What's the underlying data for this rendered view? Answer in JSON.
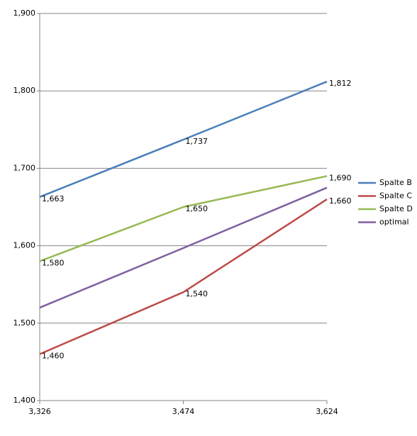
{
  "chart_data": {
    "type": "line",
    "categories": [
      "3,326",
      "3,474",
      "3,624"
    ],
    "ylim": [
      1400,
      1900
    ],
    "yticks": [
      {
        "value": 1400,
        "label": "1,400"
      },
      {
        "value": 1500,
        "label": "1,500"
      },
      {
        "value": 1600,
        "label": "1,600"
      },
      {
        "value": 1700,
        "label": "1,700"
      },
      {
        "value": 1800,
        "label": "1,800"
      },
      {
        "value": 1900,
        "label": "1,900"
      }
    ],
    "grid": true,
    "legend": "right",
    "series": [
      {
        "name": "Spalte B",
        "color": "#4a7ebb",
        "values": [
          1663,
          1737,
          1812
        ],
        "value_labels": [
          "1,663",
          "1,737",
          "1,812"
        ]
      },
      {
        "name": "Spalte C",
        "color": "#be4b48",
        "values": [
          1460,
          1540,
          1660
        ],
        "value_labels": [
          "1,460",
          "1,540",
          "1,660"
        ]
      },
      {
        "name": "Spalte D",
        "color": "#98b954",
        "values": [
          1580,
          1650,
          1690
        ],
        "value_labels": [
          "1,580",
          "1,650",
          "1,690"
        ]
      },
      {
        "name": "optimal",
        "color": "#7d60a0",
        "values": [
          1520,
          1597,
          1675
        ]
      }
    ]
  }
}
